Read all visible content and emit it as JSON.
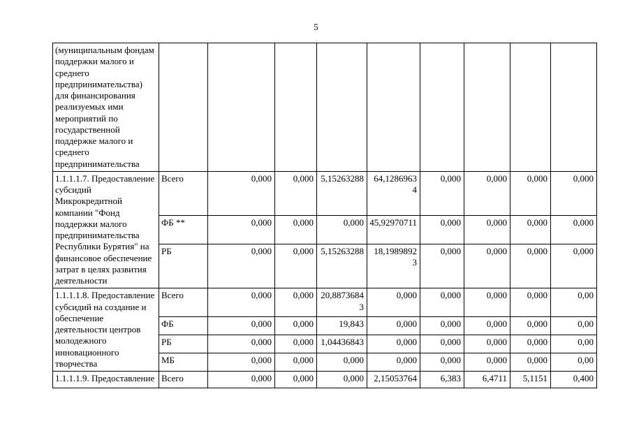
{
  "page": {
    "number": "5"
  },
  "table": {
    "rows": [
      {
        "description": "(муниципальным фондам поддержки малого и среднего предпринимательства) для финансирования реализуемых ими мероприятий по государственной поддержке малого и среднего предпринимательства",
        "subrows": [
          {
            "source": "",
            "values": [
              "",
              "",
              "",
              "",
              "",
              "",
              "",
              ""
            ]
          }
        ]
      },
      {
        "description": "1.1.1.1.7. Предоставление субсидий Микрокредитной компании \"Фонд поддержки малого предпринимательства Республики Бурятия\" на финансовое обеспечение затрат в целях развития деятельности",
        "subrows": [
          {
            "source": "Всего",
            "values": [
              "0,000",
              "0,000",
              "5,15263288",
              "64,12869634",
              "0,000",
              "0,000",
              "0,000",
              "0,000"
            ]
          },
          {
            "source": "ФБ **",
            "values": [
              "0,000",
              "0,000",
              "0,000",
              "45,92970711",
              "0,000",
              "0,000",
              "0,000",
              "0,000"
            ]
          },
          {
            "source": "РБ",
            "values": [
              "0,000",
              "0,000",
              "5,15263288",
              "18,19898923",
              "0,000",
              "0,000",
              "0,000",
              "0,000"
            ]
          }
        ]
      },
      {
        "description": "1.1.1.1.8. Предоставление субсидий на создание и обеспечение деятельности центров молодежного инновационного творчества",
        "subrows": [
          {
            "source": "Всего",
            "values": [
              "0,000",
              "0,000",
              "20,88736843",
              "0,000",
              "0,000",
              "0,000",
              "0,000",
              "0,00"
            ]
          },
          {
            "source": "ФБ",
            "values": [
              "0,000",
              "0,000",
              "19,843",
              "0,000",
              "0,000",
              "0,000",
              "0,000",
              "0,00"
            ]
          },
          {
            "source": "РБ",
            "values": [
              "0,000",
              "0,000",
              "1,04436843",
              "0,000",
              "0,000",
              "0,000",
              "0,000",
              "0,00"
            ]
          },
          {
            "source": "МБ",
            "values": [
              "0,000",
              "0,000",
              "0,000",
              "0,000",
              "0,000",
              "0,000",
              "0,000",
              "0,00"
            ]
          }
        ]
      },
      {
        "description": "1.1.1.1.9. Предоставление",
        "subrows": [
          {
            "source": "Всего",
            "values": [
              "0,000",
              "0,000",
              "0,000",
              "2,15053764",
              "6,383",
              "6,4711",
              "5,1151",
              "0,400"
            ]
          }
        ]
      }
    ]
  }
}
